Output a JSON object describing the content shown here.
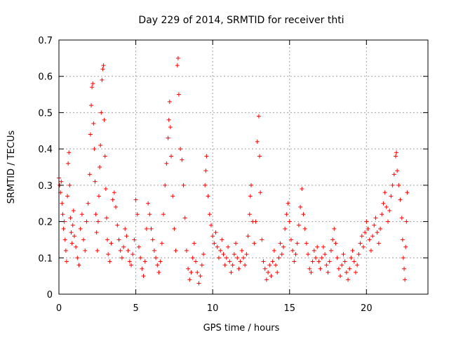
{
  "chart_data": {
    "type": "scatter",
    "title": "Day 229 of 2014, SRMTID for receiver thti",
    "xlabel": "GPS time / hours",
    "ylabel": "SRMTID / TECUs",
    "xlim": [
      0,
      24
    ],
    "ylim": [
      0,
      0.7
    ],
    "xticks": [
      "0",
      "5",
      "10",
      "15",
      "20"
    ],
    "yticks": [
      "0",
      "0.1",
      "0.2",
      "0.3",
      "0.4",
      "0.5",
      "0.6",
      "0.7"
    ],
    "grid": true,
    "marker": "+",
    "marker_color": "#ff0000",
    "series": [
      {
        "name": "SRMTID",
        "points": [
          [
            0.0,
            0.32
          ],
          [
            0.05,
            0.3
          ],
          [
            0.1,
            0.28
          ],
          [
            0.15,
            0.31
          ],
          [
            0.2,
            0.25
          ],
          [
            0.25,
            0.22
          ],
          [
            0.3,
            0.18
          ],
          [
            0.35,
            0.2
          ],
          [
            0.4,
            0.15
          ],
          [
            0.45,
            0.12
          ],
          [
            0.5,
            0.09
          ],
          [
            0.55,
            0.27
          ],
          [
            0.6,
            0.36
          ],
          [
            0.65,
            0.39
          ],
          [
            0.7,
            0.3
          ],
          [
            0.75,
            0.21
          ],
          [
            0.8,
            0.17
          ],
          [
            0.85,
            0.14
          ],
          [
            0.9,
            0.19
          ],
          [
            0.95,
            0.23
          ],
          [
            1.0,
            0.16
          ],
          [
            1.1,
            0.13
          ],
          [
            1.2,
            0.1
          ],
          [
            1.3,
            0.08
          ],
          [
            1.4,
            0.18
          ],
          [
            1.5,
            0.22
          ],
          [
            1.6,
            0.15
          ],
          [
            1.7,
            0.12
          ],
          [
            1.8,
            0.2
          ],
          [
            1.9,
            0.25
          ],
          [
            2.0,
            0.33
          ],
          [
            2.05,
            0.44
          ],
          [
            2.1,
            0.52
          ],
          [
            2.15,
            0.57
          ],
          [
            2.2,
            0.58
          ],
          [
            2.25,
            0.47
          ],
          [
            2.3,
            0.4
          ],
          [
            2.35,
            0.31
          ],
          [
            2.4,
            0.22
          ],
          [
            2.45,
            0.17
          ],
          [
            2.5,
            0.12
          ],
          [
            2.55,
            0.2
          ],
          [
            2.6,
            0.27
          ],
          [
            2.65,
            0.35
          ],
          [
            2.7,
            0.41
          ],
          [
            2.75,
            0.5
          ],
          [
            2.8,
            0.59
          ],
          [
            2.85,
            0.62
          ],
          [
            2.9,
            0.63
          ],
          [
            2.95,
            0.48
          ],
          [
            3.0,
            0.38
          ],
          [
            3.05,
            0.29
          ],
          [
            3.1,
            0.21
          ],
          [
            3.15,
            0.15
          ],
          [
            3.2,
            0.11
          ],
          [
            3.3,
            0.09
          ],
          [
            3.4,
            0.14
          ],
          [
            3.5,
            0.26
          ],
          [
            3.6,
            0.28
          ],
          [
            3.7,
            0.24
          ],
          [
            3.8,
            0.19
          ],
          [
            3.9,
            0.15
          ],
          [
            4.0,
            0.12
          ],
          [
            4.1,
            0.1
          ],
          [
            4.2,
            0.13
          ],
          [
            4.3,
            0.18
          ],
          [
            4.4,
            0.16
          ],
          [
            4.5,
            0.12
          ],
          [
            4.6,
            0.09
          ],
          [
            4.7,
            0.08
          ],
          [
            4.8,
            0.11
          ],
          [
            4.9,
            0.15
          ],
          [
            5.0,
            0.26
          ],
          [
            5.1,
            0.22
          ],
          [
            5.2,
            0.13
          ],
          [
            5.3,
            0.1
          ],
          [
            5.4,
            0.07
          ],
          [
            5.5,
            0.05
          ],
          [
            5.6,
            0.09
          ],
          [
            5.7,
            0.18
          ],
          [
            5.8,
            0.25
          ],
          [
            5.9,
            0.22
          ],
          [
            6.0,
            0.18
          ],
          [
            6.1,
            0.15
          ],
          [
            6.2,
            0.12
          ],
          [
            6.3,
            0.1
          ],
          [
            6.4,
            0.08
          ],
          [
            6.5,
            0.06
          ],
          [
            6.6,
            0.09
          ],
          [
            6.7,
            0.14
          ],
          [
            6.8,
            0.22
          ],
          [
            6.9,
            0.3
          ],
          [
            7.0,
            0.36
          ],
          [
            7.1,
            0.43
          ],
          [
            7.15,
            0.48
          ],
          [
            7.2,
            0.53
          ],
          [
            7.25,
            0.46
          ],
          [
            7.3,
            0.38
          ],
          [
            7.4,
            0.27
          ],
          [
            7.5,
            0.18
          ],
          [
            7.6,
            0.12
          ],
          [
            7.7,
            0.63
          ],
          [
            7.75,
            0.65
          ],
          [
            7.8,
            0.55
          ],
          [
            7.9,
            0.4
          ],
          [
            8.0,
            0.37
          ],
          [
            8.1,
            0.3
          ],
          [
            8.2,
            0.21
          ],
          [
            8.3,
            0.12
          ],
          [
            8.4,
            0.07
          ],
          [
            8.5,
            0.04
          ],
          [
            8.6,
            0.06
          ],
          [
            8.7,
            0.1
          ],
          [
            8.8,
            0.14
          ],
          [
            8.9,
            0.09
          ],
          [
            9.0,
            0.06
          ],
          [
            9.1,
            0.03
          ],
          [
            9.2,
            0.05
          ],
          [
            9.3,
            0.08
          ],
          [
            9.4,
            0.11
          ],
          [
            9.5,
            0.3
          ],
          [
            9.55,
            0.34
          ],
          [
            9.6,
            0.38
          ],
          [
            9.7,
            0.27
          ],
          [
            9.8,
            0.22
          ],
          [
            9.9,
            0.19
          ],
          [
            10.0,
            0.16
          ],
          [
            10.1,
            0.14
          ],
          [
            10.2,
            0.17
          ],
          [
            10.3,
            0.13
          ],
          [
            10.4,
            0.1
          ],
          [
            10.5,
            0.12
          ],
          [
            10.6,
            0.15
          ],
          [
            10.7,
            0.11
          ],
          [
            10.8,
            0.08
          ],
          [
            10.9,
            0.1
          ],
          [
            11.0,
            0.13
          ],
          [
            11.1,
            0.09
          ],
          [
            11.2,
            0.06
          ],
          [
            11.3,
            0.08
          ],
          [
            11.4,
            0.11
          ],
          [
            11.5,
            0.14
          ],
          [
            11.6,
            0.1
          ],
          [
            11.7,
            0.07
          ],
          [
            11.8,
            0.09
          ],
          [
            11.9,
            0.12
          ],
          [
            12.0,
            0.1
          ],
          [
            12.1,
            0.08
          ],
          [
            12.2,
            0.11
          ],
          [
            12.3,
            0.16
          ],
          [
            12.4,
            0.22
          ],
          [
            12.45,
            0.27
          ],
          [
            12.5,
            0.3
          ],
          [
            12.6,
            0.2
          ],
          [
            12.7,
            0.14
          ],
          [
            12.8,
            0.2
          ],
          [
            12.9,
            0.42
          ],
          [
            13.0,
            0.49
          ],
          [
            13.05,
            0.38
          ],
          [
            13.1,
            0.28
          ],
          [
            13.2,
            0.15
          ],
          [
            13.3,
            0.09
          ],
          [
            13.4,
            0.07
          ],
          [
            13.5,
            0.04
          ],
          [
            13.6,
            0.06
          ],
          [
            13.7,
            0.08
          ],
          [
            13.8,
            0.05
          ],
          [
            13.9,
            0.09
          ],
          [
            14.0,
            0.12
          ],
          [
            14.1,
            0.08
          ],
          [
            14.2,
            0.06
          ],
          [
            14.3,
            0.1
          ],
          [
            14.4,
            0.14
          ],
          [
            14.5,
            0.11
          ],
          [
            14.6,
            0.13
          ],
          [
            14.7,
            0.18
          ],
          [
            14.8,
            0.22
          ],
          [
            14.9,
            0.25
          ],
          [
            15.0,
            0.2
          ],
          [
            15.1,
            0.15
          ],
          [
            15.2,
            0.12
          ],
          [
            15.3,
            0.09
          ],
          [
            15.4,
            0.11
          ],
          [
            15.5,
            0.14
          ],
          [
            15.6,
            0.19
          ],
          [
            15.7,
            0.24
          ],
          [
            15.8,
            0.29
          ],
          [
            15.9,
            0.22
          ],
          [
            16.0,
            0.18
          ],
          [
            16.1,
            0.14
          ],
          [
            16.2,
            0.11
          ],
          [
            16.3,
            0.07
          ],
          [
            16.4,
            0.06
          ],
          [
            16.5,
            0.09
          ],
          [
            16.6,
            0.12
          ],
          [
            16.7,
            0.1
          ],
          [
            16.8,
            0.13
          ],
          [
            16.9,
            0.09
          ],
          [
            17.0,
            0.07
          ],
          [
            17.1,
            0.1
          ],
          [
            17.2,
            0.13
          ],
          [
            17.3,
            0.11
          ],
          [
            17.4,
            0.08
          ],
          [
            17.5,
            0.06
          ],
          [
            17.6,
            0.09
          ],
          [
            17.7,
            0.12
          ],
          [
            17.8,
            0.15
          ],
          [
            17.9,
            0.18
          ],
          [
            18.0,
            0.14
          ],
          [
            18.1,
            0.1
          ],
          [
            18.2,
            0.07
          ],
          [
            18.3,
            0.05
          ],
          [
            18.4,
            0.08
          ],
          [
            18.5,
            0.11
          ],
          [
            18.6,
            0.09
          ],
          [
            18.7,
            0.06
          ],
          [
            18.8,
            0.04
          ],
          [
            18.9,
            0.07
          ],
          [
            19.0,
            0.1
          ],
          [
            19.1,
            0.12
          ],
          [
            19.2,
            0.09
          ],
          [
            19.3,
            0.06
          ],
          [
            19.4,
            0.08
          ],
          [
            19.5,
            0.11
          ],
          [
            19.6,
            0.14
          ],
          [
            19.7,
            0.16
          ],
          [
            19.8,
            0.13
          ],
          [
            19.9,
            0.17
          ],
          [
            20.0,
            0.2
          ],
          [
            20.1,
            0.18
          ],
          [
            20.2,
            0.15
          ],
          [
            20.3,
            0.12
          ],
          [
            20.4,
            0.16
          ],
          [
            20.5,
            0.19
          ],
          [
            20.6,
            0.21
          ],
          [
            20.7,
            0.17
          ],
          [
            20.8,
            0.14
          ],
          [
            20.9,
            0.18
          ],
          [
            21.0,
            0.22
          ],
          [
            21.1,
            0.25
          ],
          [
            21.2,
            0.28
          ],
          [
            21.3,
            0.24
          ],
          [
            21.4,
            0.2
          ],
          [
            21.5,
            0.23
          ],
          [
            21.6,
            0.27
          ],
          [
            21.7,
            0.3
          ],
          [
            21.8,
            0.33
          ],
          [
            21.9,
            0.38
          ],
          [
            21.95,
            0.39
          ],
          [
            22.0,
            0.34
          ],
          [
            22.1,
            0.3
          ],
          [
            22.2,
            0.26
          ],
          [
            22.3,
            0.21
          ],
          [
            22.35,
            0.15
          ],
          [
            22.4,
            0.1
          ],
          [
            22.45,
            0.07
          ],
          [
            22.5,
            0.04
          ],
          [
            22.55,
            0.13
          ],
          [
            22.6,
            0.2
          ],
          [
            22.65,
            0.28
          ]
        ]
      }
    ]
  }
}
